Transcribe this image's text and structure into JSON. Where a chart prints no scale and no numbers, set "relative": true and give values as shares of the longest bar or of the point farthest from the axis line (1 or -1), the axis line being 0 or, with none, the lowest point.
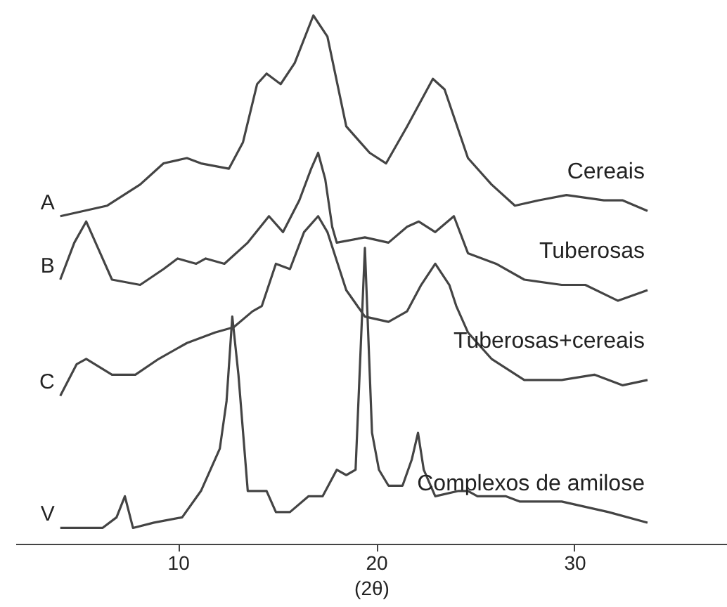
{
  "chart_data": {
    "type": "line",
    "relative": true,
    "xlabel": "(2θ)",
    "xlim": [
      1.8,
      37.7
    ],
    "xticks": [
      10,
      20,
      30
    ],
    "grid": false,
    "legend": false,
    "series": [
      {
        "name": "Cereais",
        "color": "#444444",
        "x": [
          4.06,
          6.43,
          8.09,
          9.27,
          10.45,
          11.16,
          12.57,
          13.28,
          13.99,
          14.47,
          15.18,
          15.89,
          16.83,
          17.54,
          18.49,
          19.67,
          20.5,
          21.56,
          22.86,
          23.45,
          24.63,
          25.82,
          27.0,
          28.18,
          29.6,
          31.49,
          32.44,
          33.69
        ],
        "values": [
          0.62,
          0.64,
          0.68,
          0.72,
          0.73,
          0.72,
          0.71,
          0.76,
          0.87,
          0.89,
          0.87,
          0.91,
          1.0,
          0.96,
          0.79,
          0.74,
          0.72,
          0.79,
          0.88,
          0.86,
          0.73,
          0.68,
          0.64,
          0.65,
          0.66,
          0.65,
          0.65,
          0.63
        ]
      },
      {
        "name": "Tuberosas",
        "color": "#444444",
        "x": [
          4.06,
          4.77,
          5.37,
          5.96,
          6.67,
          8.09,
          9.27,
          9.98,
          10.92,
          11.4,
          12.34,
          13.52,
          14.59,
          15.3,
          16.12,
          16.72,
          17.07,
          17.43,
          17.78,
          18.01,
          19.43,
          20.62,
          21.56,
          22.15,
          22.98,
          23.92,
          24.63,
          26.05,
          27.47,
          29.36,
          30.55,
          32.2,
          33.69
        ],
        "values": [
          0.5,
          0.57,
          0.61,
          0.56,
          0.5,
          0.49,
          0.52,
          0.54,
          0.53,
          0.54,
          0.53,
          0.57,
          0.62,
          0.59,
          0.65,
          0.71,
          0.74,
          0.69,
          0.6,
          0.57,
          0.58,
          0.57,
          0.6,
          0.61,
          0.59,
          0.62,
          0.55,
          0.53,
          0.5,
          0.49,
          0.49,
          0.46,
          0.48
        ]
      },
      {
        "name": "Tuberosas+cereais",
        "color": "#444444",
        "x": [
          4.06,
          4.89,
          5.37,
          6.67,
          7.85,
          9.03,
          10.45,
          11.87,
          12.81,
          13.76,
          14.23,
          14.94,
          15.65,
          16.36,
          17.07,
          17.54,
          18.49,
          19.43,
          20.62,
          21.56,
          22.27,
          22.98,
          23.69,
          24.04,
          24.63,
          25.82,
          27.47,
          29.36,
          31.01,
          32.44,
          33.69
        ],
        "values": [
          0.28,
          0.34,
          0.35,
          0.32,
          0.32,
          0.35,
          0.38,
          0.4,
          0.41,
          0.44,
          0.45,
          0.53,
          0.52,
          0.59,
          0.62,
          0.59,
          0.48,
          0.43,
          0.42,
          0.44,
          0.49,
          0.53,
          0.49,
          0.45,
          0.4,
          0.35,
          0.31,
          0.31,
          0.32,
          0.3,
          0.31
        ]
      },
      {
        "name": "Complexos de amilose",
        "color": "#444444",
        "x": [
          4.06,
          6.19,
          6.9,
          7.32,
          7.73,
          8.79,
          10.21,
          11.16,
          12.11,
          12.45,
          12.74,
          13.05,
          13.52,
          13.87,
          14.47,
          14.94,
          15.65,
          16.59,
          17.3,
          18.01,
          18.49,
          18.96,
          19.43,
          19.79,
          20.14,
          20.62,
          21.33,
          21.8,
          22.11,
          22.4,
          22.98,
          24.16,
          24.63,
          25.11,
          26.53,
          27.23,
          29.36,
          31.72,
          33.69
        ],
        "values": [
          0.03,
          0.03,
          0.05,
          0.09,
          0.03,
          0.04,
          0.05,
          0.1,
          0.18,
          0.27,
          0.43,
          0.32,
          0.1,
          0.1,
          0.1,
          0.06,
          0.06,
          0.09,
          0.09,
          0.14,
          0.13,
          0.14,
          0.56,
          0.21,
          0.14,
          0.11,
          0.11,
          0.16,
          0.21,
          0.14,
          0.09,
          0.1,
          0.1,
          0.09,
          0.09,
          0.08,
          0.08,
          0.06,
          0.04
        ]
      }
    ],
    "annotations": [
      "A",
      "B",
      "C",
      "V"
    ]
  }
}
